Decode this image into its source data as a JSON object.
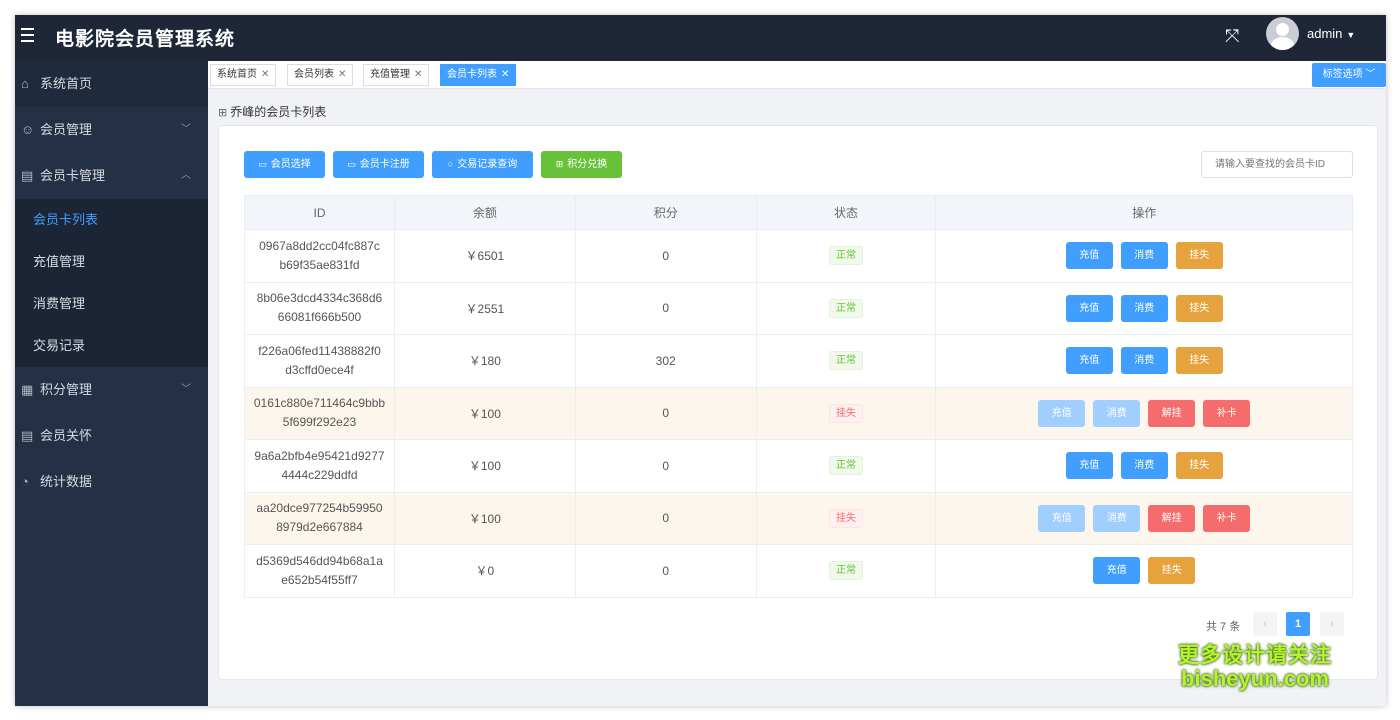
{
  "header": {
    "title": "电影院会员管理系统",
    "fullscreen_icon": "⤧",
    "username": "admin",
    "caret": "▼"
  },
  "sidebar": {
    "items": [
      {
        "label": "系统首页",
        "icon": "⌂"
      },
      {
        "label": "会员管理",
        "icon": "☺",
        "chevron": "﹀"
      },
      {
        "label": "会员卡管理",
        "icon": "▤",
        "chevron": "︿"
      },
      {
        "label": "积分管理",
        "icon": "▦",
        "chevron": "﹀"
      },
      {
        "label": "会员关怀",
        "icon": "▤"
      },
      {
        "label": "统计数据",
        "icon": "◔"
      }
    ],
    "subitems": [
      {
        "label": "会员卡列表",
        "active": true
      },
      {
        "label": "充值管理"
      },
      {
        "label": "消费管理"
      },
      {
        "label": "交易记录"
      }
    ]
  },
  "tabs": {
    "items": [
      {
        "label": "系统首页"
      },
      {
        "label": "会员列表"
      },
      {
        "label": "充值管理"
      },
      {
        "label": "会员卡列表",
        "active": true
      }
    ],
    "close": "✕",
    "options_label": "标签选项 ﹀"
  },
  "page": {
    "heading": "乔峰的会员卡列表",
    "grid_icon": "⊞"
  },
  "toolbar": {
    "member_select": "会员选择",
    "card_register": "会员卡注册",
    "txn_query": "交易记录查询",
    "points_exchange": "积分兑换",
    "card_icon": "▭",
    "search_icon": "○",
    "gift_icon": "⊞",
    "search_placeholder": "请输入要查找的会员卡ID"
  },
  "table": {
    "headers": [
      "ID",
      "余额",
      "积分",
      "状态",
      "操作"
    ],
    "rows": [
      {
        "id1": "0967a8dd2cc04fc887c",
        "id2": "b69f35ae831fd",
        "balance": "￥6501",
        "points": "0",
        "status": "正常",
        "lost": false,
        "ops": [
          "充值",
          "消费",
          "挂失"
        ]
      },
      {
        "id1": "8b06e3dcd4334c368d6",
        "id2": "66081f666b500",
        "balance": "￥2551",
        "points": "0",
        "status": "正常",
        "lost": false,
        "ops": [
          "充值",
          "消费",
          "挂失"
        ]
      },
      {
        "id1": "f226a06fed11438882f0",
        "id2": "d3cffd0ece4f",
        "balance": "￥180",
        "points": "302",
        "status": "正常",
        "lost": false,
        "ops": [
          "充值",
          "消费",
          "挂失"
        ]
      },
      {
        "id1": "0161c880e711464c9bbb",
        "id2": "5f699f292e23",
        "balance": "￥100",
        "points": "0",
        "status": "挂失",
        "lost": true,
        "ops": [
          "充值",
          "消费",
          "解挂",
          "补卡"
        ]
      },
      {
        "id1": "9a6a2bfb4e95421d9277",
        "id2": "4444c229ddfd",
        "balance": "￥100",
        "points": "0",
        "status": "正常",
        "lost": false,
        "ops": [
          "充值",
          "消费",
          "挂失"
        ]
      },
      {
        "id1": "aa20dce977254b59950",
        "id2": "8979d2e667884",
        "balance": "￥100",
        "points": "0",
        "status": "挂失",
        "lost": true,
        "ops": [
          "充值",
          "消费",
          "解挂",
          "补卡"
        ]
      },
      {
        "id1": "d5369d546dd94b68a1a",
        "id2": "e652b54f55ff7",
        "balance": "￥0",
        "points": "0",
        "status": "正常",
        "lost": false,
        "ops": [
          "充值",
          "挂失"
        ]
      }
    ]
  },
  "pagination": {
    "total": "共 7 条",
    "prev": "‹",
    "page": "1",
    "next": "›"
  },
  "watermark": {
    "line1": "更多设计请关注",
    "line2": "bisheyun.com"
  }
}
